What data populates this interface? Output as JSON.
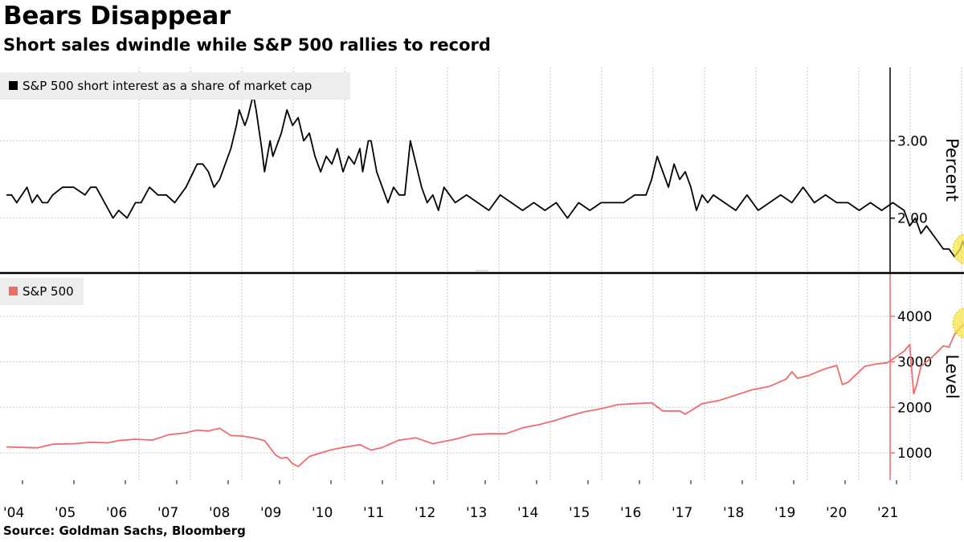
{
  "header": {
    "title": "Bears Disappear",
    "subtitle": "Short sales dwindle while S&P 500 rallies to record"
  },
  "footer": {
    "source": "Source: Goldman Sachs, Bloomberg"
  },
  "colors": {
    "short_interest": "#000000",
    "sp500": "#f26b6b",
    "highlight": "#f5e64a",
    "grid": "#c8c8c8",
    "legend_bg": "#ededed"
  },
  "chart_data": [
    {
      "type": "line",
      "panel": "top",
      "legend": "S&P 500 short interest as a share of market cap",
      "ylabel": "Percent",
      "ylim": [
        1.3,
        3.95
      ],
      "yticks": [
        2.0,
        3.0
      ],
      "ytick_labels": [
        "2.00",
        "3.00"
      ],
      "grid": true,
      "legend_position": "top-left",
      "highlight": "latest reading",
      "series": [
        {
          "name": "S&P 500 short interest as a share of market cap",
          "x": [
            2004.0,
            2004.1,
            2004.2,
            2004.3,
            2004.4,
            2004.5,
            2004.6,
            2004.7,
            2004.8,
            2004.9,
            2005.0,
            2005.2,
            2005.4,
            2005.5,
            2005.6,
            2005.75,
            2005.9,
            2006.0,
            2006.15,
            2006.3,
            2006.4,
            2006.55,
            2006.7,
            2006.85,
            2007.0,
            2007.2,
            2007.4,
            2007.5,
            2007.6,
            2007.7,
            2007.8,
            2007.9,
            2008.0,
            2008.1,
            2008.15,
            2008.25,
            2008.3,
            2008.4,
            2008.45,
            2008.55,
            2008.6,
            2008.7,
            2008.75,
            2008.85,
            2008.9,
            2009.0,
            2009.1,
            2009.2,
            2009.3,
            2009.4,
            2009.5,
            2009.6,
            2009.7,
            2009.8,
            2009.9,
            2010.0,
            2010.1,
            2010.2,
            2010.3,
            2010.35,
            2010.45,
            2010.5,
            2010.6,
            2010.7,
            2010.8,
            2010.9,
            2011.0,
            2011.1,
            2011.2,
            2011.3,
            2011.4,
            2011.5,
            2011.6,
            2011.7,
            2011.8,
            2011.9,
            2012.0,
            2012.2,
            2012.4,
            2012.6,
            2012.8,
            2013.0,
            2013.2,
            2013.4,
            2013.6,
            2013.8,
            2014.0,
            2014.2,
            2014.4,
            2014.6,
            2014.8,
            2015.0,
            2015.2,
            2015.4,
            2015.5,
            2015.6,
            2015.7,
            2015.8,
            2015.9,
            2016.0,
            2016.1,
            2016.2,
            2016.3,
            2016.4,
            2016.5,
            2016.6,
            2016.8,
            2017.0,
            2017.2,
            2017.4,
            2017.6,
            2017.8,
            2018.0,
            2018.2,
            2018.4,
            2018.6,
            2018.8,
            2019.0,
            2019.2,
            2019.4,
            2019.6,
            2019.8,
            2020.0,
            2020.1,
            2020.2,
            2020.3,
            2020.4,
            2020.5,
            2020.6,
            2020.7,
            2020.8,
            2020.9,
            2021.0,
            2021.05,
            2021.1,
            2021.15,
            2021.2,
            2021.3
          ],
          "y": [
            2.3,
            2.3,
            2.2,
            2.3,
            2.4,
            2.2,
            2.3,
            2.2,
            2.2,
            2.3,
            2.4,
            2.4,
            2.3,
            2.4,
            2.4,
            2.2,
            2.0,
            2.1,
            2.0,
            2.2,
            2.2,
            2.4,
            2.3,
            2.3,
            2.2,
            2.4,
            2.7,
            2.7,
            2.6,
            2.4,
            2.5,
            2.7,
            2.9,
            3.2,
            3.4,
            3.2,
            3.3,
            3.6,
            3.4,
            2.9,
            2.6,
            3.0,
            2.8,
            3.0,
            3.1,
            3.4,
            3.2,
            3.3,
            3.0,
            3.1,
            2.8,
            2.6,
            2.8,
            2.7,
            2.9,
            2.6,
            2.8,
            2.7,
            2.9,
            2.6,
            3.0,
            3.0,
            2.6,
            2.4,
            2.2,
            2.4,
            2.3,
            2.3,
            3.0,
            2.7,
            2.4,
            2.2,
            2.3,
            2.1,
            2.4,
            2.3,
            2.2,
            2.3,
            2.2,
            2.1,
            2.3,
            2.2,
            2.1,
            2.2,
            2.1,
            2.2,
            2.0,
            2.2,
            2.1,
            2.2,
            2.2,
            2.2,
            2.3,
            2.3,
            2.5,
            2.8,
            2.6,
            2.4,
            2.7,
            2.5,
            2.6,
            2.4,
            2.1,
            2.3,
            2.2,
            2.3,
            2.2,
            2.1,
            2.3,
            2.1,
            2.2,
            2.3,
            2.2,
            2.4,
            2.2,
            2.3,
            2.2,
            2.2,
            2.1,
            2.2,
            2.1,
            2.2,
            2.1,
            1.9,
            2.0,
            1.8,
            1.9,
            1.8,
            1.7,
            1.6,
            1.6,
            1.5,
            1.6,
            1.7,
            1.6,
            1.6,
            1.5,
            1.5
          ]
        }
      ]
    },
    {
      "type": "line",
      "panel": "bottom",
      "legend": "S&P 500",
      "ylabel": "Level",
      "ylim": [
        400,
        4950
      ],
      "yticks": [
        1000,
        2000,
        3000,
        4000
      ],
      "ytick_labels": [
        "1000",
        "2000",
        "3000",
        "4000"
      ],
      "grid": true,
      "legend_position": "top-left",
      "highlight": "latest level",
      "xticks": [
        2004,
        2005,
        2006,
        2007,
        2008,
        2009,
        2010,
        2011,
        2012,
        2013,
        2014,
        2015,
        2016,
        2017,
        2018,
        2019,
        2020,
        2021
      ],
      "xtick_labels": [
        "'04",
        "'05",
        "'06",
        "'07",
        "'08",
        "'09",
        "'10",
        "'11",
        "'12",
        "'13",
        "'14",
        "'15",
        "'16",
        "'17",
        "'18",
        "'19",
        "'20",
        "'21"
      ],
      "series": [
        {
          "name": "S&P 500",
          "x": [
            2004.0,
            2004.3,
            2004.6,
            2004.9,
            2005.2,
            2005.5,
            2005.8,
            2006.0,
            2006.3,
            2006.6,
            2006.9,
            2007.2,
            2007.4,
            2007.6,
            2007.8,
            2008.0,
            2008.2,
            2008.4,
            2008.6,
            2008.8,
            2008.9,
            2009.0,
            2009.1,
            2009.2,
            2009.4,
            2009.6,
            2009.8,
            2010.0,
            2010.3,
            2010.5,
            2010.7,
            2011.0,
            2011.3,
            2011.6,
            2011.8,
            2012.0,
            2012.3,
            2012.6,
            2012.9,
            2013.2,
            2013.5,
            2013.8,
            2014.0,
            2014.3,
            2014.6,
            2014.9,
            2015.2,
            2015.5,
            2015.7,
            2016.0,
            2016.1,
            2016.4,
            2016.7,
            2017.0,
            2017.3,
            2017.6,
            2017.9,
            2018.0,
            2018.1,
            2018.3,
            2018.6,
            2018.8,
            2018.9,
            2019.0,
            2019.3,
            2019.5,
            2019.7,
            2020.0,
            2020.1,
            2020.17,
            2020.22,
            2020.3,
            2020.5,
            2020.7,
            2020.8,
            2020.9,
            2021.0,
            2021.1,
            2021.2,
            2021.3
          ],
          "y": [
            1130,
            1120,
            1110,
            1190,
            1200,
            1230,
            1220,
            1270,
            1300,
            1280,
            1400,
            1440,
            1500,
            1480,
            1540,
            1380,
            1370,
            1330,
            1270,
            950,
            880,
            900,
            760,
            700,
            920,
            1000,
            1070,
            1120,
            1180,
            1060,
            1120,
            1280,
            1330,
            1200,
            1250,
            1300,
            1400,
            1420,
            1420,
            1550,
            1620,
            1720,
            1800,
            1900,
            1970,
            2060,
            2080,
            2100,
            1920,
            1920,
            1850,
            2080,
            2150,
            2270,
            2390,
            2460,
            2620,
            2780,
            2640,
            2700,
            2850,
            2920,
            2500,
            2550,
            2900,
            2950,
            2980,
            3230,
            3380,
            2300,
            2480,
            2900,
            3100,
            3350,
            3320,
            3600,
            3750,
            3850,
            3950,
            4150
          ]
        }
      ]
    }
  ]
}
